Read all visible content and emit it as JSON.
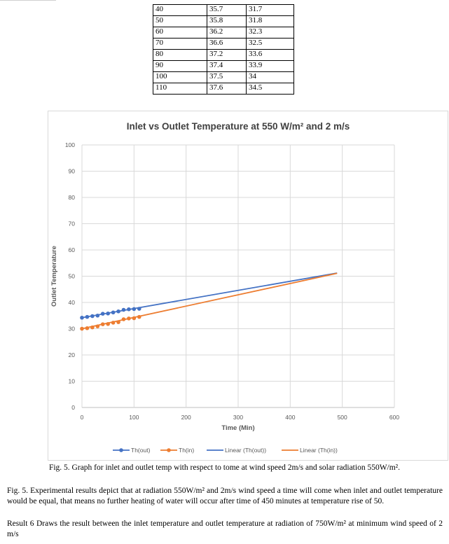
{
  "table": {
    "rows": [
      [
        "40",
        "35.7",
        "31.7"
      ],
      [
        "50",
        "35.8",
        "31.8"
      ],
      [
        "60",
        "36.2",
        "32.3"
      ],
      [
        "70",
        "36.6",
        "32.5"
      ],
      [
        "80",
        "37.2",
        "33.6"
      ],
      [
        "90",
        "37.4",
        "33.9"
      ],
      [
        "100",
        "37.5",
        "34"
      ],
      [
        "110",
        "37.6",
        "34.5"
      ]
    ]
  },
  "chart_data": {
    "type": "scatter",
    "title": "Inlet vs Outlet Temperature at 550 W/m² and 2 m/s",
    "xlabel": "Time (Min)",
    "ylabel": "Outlet Temperature",
    "xlim": [
      0,
      600
    ],
    "ylim": [
      0,
      100
    ],
    "x_ticks": [
      "0",
      "100",
      "200",
      "300",
      "400",
      "500",
      "600"
    ],
    "y_ticks": [
      "0",
      "10",
      "20",
      "30",
      "40",
      "50",
      "60",
      "70",
      "80",
      "90",
      "100"
    ],
    "grid": true,
    "legend_position": "bottom",
    "series": [
      {
        "name": "Th(out)",
        "color": "#4472c4",
        "x": [
          0,
          10,
          20,
          30,
          40,
          50,
          60,
          70,
          80,
          90,
          100,
          110
        ],
        "y": [
          34.2,
          34.5,
          34.8,
          35.0,
          35.7,
          35.8,
          36.2,
          36.6,
          37.2,
          37.4,
          37.5,
          37.6
        ]
      },
      {
        "name": "Th(in)",
        "color": "#ed7d31",
        "x": [
          0,
          10,
          20,
          30,
          40,
          50,
          60,
          70,
          80,
          90,
          100,
          110
        ],
        "y": [
          30.0,
          30.2,
          30.5,
          30.9,
          31.7,
          31.8,
          32.3,
          32.5,
          33.6,
          33.9,
          34.0,
          34.5
        ]
      }
    ],
    "trendlines": [
      {
        "name": "Linear (Th(out))",
        "color": "#4472c4",
        "x": [
          0,
          490
        ],
        "y": [
          34.2,
          51.2
        ]
      },
      {
        "name": "Linear (Th(in))",
        "color": "#ed7d31",
        "x": [
          0,
          490
        ],
        "y": [
          30.0,
          51.1
        ]
      }
    ]
  },
  "caption": "Fig. 5. Graph for inlet and outlet temp with respect to tome at wind speed 2m/s and solar radiation 550W/m².",
  "paragraph1": "Fig. 5. Experimental results depict that at radiation 550W/m² and 2m/s wind speed a time will come when inlet and outlet temperature would be equal, that means no further heating of water will occur after time of 450 minutes at temperature rise of 50.",
  "paragraph2": "Result 6 Draws the result between the inlet temperature and outlet temperature at radiation of 750W/m² at minimum wind speed of 2 m/s"
}
